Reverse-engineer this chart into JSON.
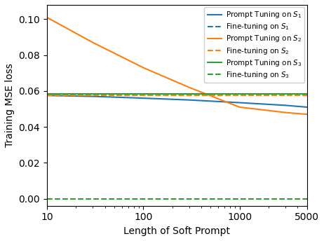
{
  "x_values": [
    10,
    30,
    100,
    300,
    1000,
    3000,
    5000
  ],
  "prompt_tuning_s1": [
    0.0575,
    0.057,
    0.056,
    0.055,
    0.0535,
    0.052,
    0.051
  ],
  "fine_tuning_s1": [
    0.0575,
    0.0575,
    0.0575,
    0.0575,
    0.0575,
    0.0575,
    0.0575
  ],
  "prompt_tuning_s2": [
    0.101,
    0.087,
    0.073,
    0.062,
    0.051,
    0.048,
    0.047
  ],
  "fine_tuning_s2": [
    0.0575,
    0.0575,
    0.0575,
    0.0575,
    0.0575,
    0.0575,
    0.0575
  ],
  "prompt_tuning_s3": [
    0.0585,
    0.0585,
    0.0585,
    0.0585,
    0.0585,
    0.0585,
    0.0585
  ],
  "fine_tuning_s3": [
    0.0,
    0.0,
    0.0,
    0.0,
    0.0,
    0.0,
    0.0
  ],
  "color_s1": "#1f77b4",
  "color_s2": "#ff7f0e",
  "color_s3": "#2ca02c",
  "xlabel": "Length of Soft Prompt",
  "ylabel": "Training MSE loss",
  "ylim_min": -0.004,
  "ylim_max": 0.108,
  "xlim_min": 10,
  "xlim_max": 5000,
  "legend_labels": [
    "Prompt Tuning on $S_1$",
    "Fine-tuning on $S_1$",
    "Prompt Tuning on $S_2$",
    "Fine-tuning on $S_2$",
    "Prompt Tuning on $S_3$",
    "Fine-tuning on $S_3$"
  ],
  "xticks": [
    10,
    100,
    1000,
    5000
  ],
  "xtick_labels": [
    "10",
    "100",
    "1000",
    "5000"
  ],
  "yticks": [
    0.0,
    0.02,
    0.04,
    0.06,
    0.08,
    0.1
  ]
}
